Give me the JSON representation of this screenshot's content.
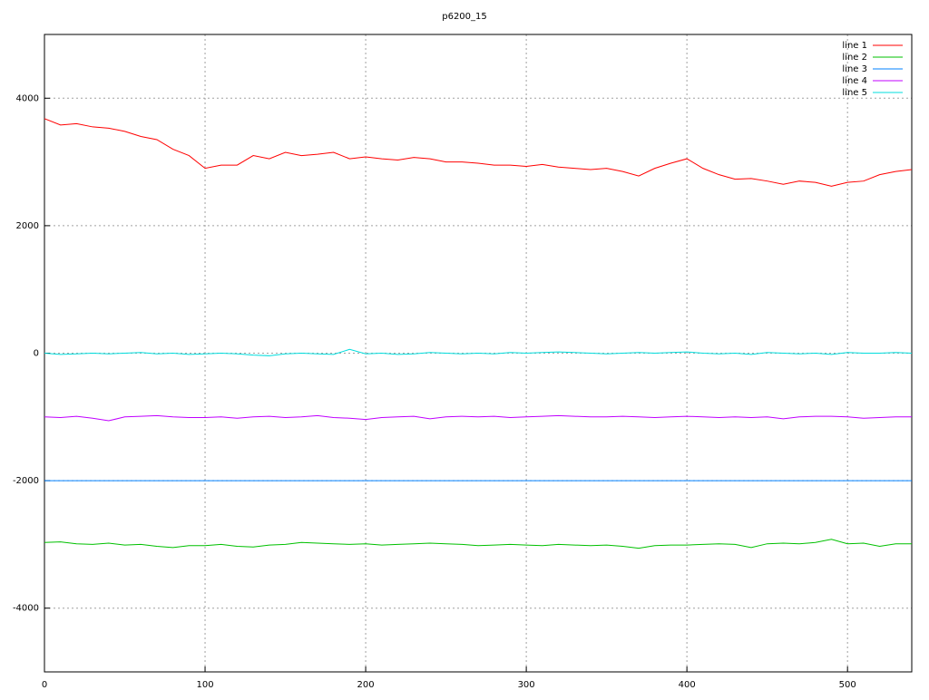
{
  "chart_data": {
    "type": "line",
    "title": "p6200_15",
    "x": [
      0,
      10,
      20,
      30,
      40,
      50,
      60,
      70,
      80,
      90,
      100,
      110,
      120,
      130,
      140,
      150,
      160,
      170,
      180,
      190,
      200,
      210,
      220,
      230,
      240,
      250,
      260,
      270,
      280,
      290,
      300,
      310,
      320,
      330,
      340,
      350,
      360,
      370,
      380,
      390,
      400,
      410,
      420,
      430,
      440,
      450,
      460,
      470,
      480,
      490,
      500,
      510,
      520,
      530,
      540
    ],
    "series": [
      {
        "name": "line 1",
        "color": "#ff0000",
        "values": [
          3680,
          3580,
          3600,
          3550,
          3530,
          3480,
          3400,
          3350,
          3200,
          3100,
          2900,
          2950,
          2950,
          3100,
          3050,
          3150,
          3100,
          3120,
          3150,
          3050,
          3080,
          3050,
          3030,
          3070,
          3050,
          3000,
          3000,
          2980,
          2950,
          2950,
          2930,
          2960,
          2920,
          2900,
          2880,
          2900,
          2850,
          2780,
          2900,
          2980,
          3050,
          2900,
          2800,
          2730,
          2740,
          2700,
          2650,
          2700,
          2680,
          2620,
          2680,
          2700,
          2800,
          2850,
          2880
        ]
      },
      {
        "name": "line 2",
        "color": "#00c000",
        "values": [
          -2970,
          -2960,
          -2990,
          -3000,
          -2980,
          -3010,
          -3000,
          -3030,
          -3050,
          -3020,
          -3020,
          -3000,
          -3030,
          -3040,
          -3010,
          -3000,
          -2970,
          -2980,
          -2990,
          -3000,
          -2990,
          -3010,
          -3000,
          -2990,
          -2980,
          -2990,
          -3000,
          -3020,
          -3010,
          -3000,
          -3010,
          -3020,
          -3000,
          -3010,
          -3020,
          -3010,
          -3030,
          -3060,
          -3020,
          -3010,
          -3010,
          -3000,
          -2990,
          -3000,
          -3050,
          -2990,
          -2980,
          -2990,
          -2970,
          -2920,
          -2990,
          -2980,
          -3030,
          -2990,
          -2990
        ]
      },
      {
        "name": "line 3",
        "color": "#0080ff",
        "values": [
          -2000,
          -2000,
          -2000,
          -2000,
          -2000,
          -2000,
          -2000,
          -2000,
          -2000,
          -2000,
          -2000,
          -2000,
          -2000,
          -2000,
          -2000,
          -2000,
          -2000,
          -2000,
          -2000,
          -2000,
          -2000,
          -2000,
          -2000,
          -2000,
          -2000,
          -2000,
          -2000,
          -2000,
          -2000,
          -2000,
          -2000,
          -2000,
          -2000,
          -2000,
          -2000,
          -2000,
          -2000,
          -2000,
          -2000,
          -2000,
          -2000,
          -2000,
          -2000,
          -2000,
          -2000,
          -2000,
          -2000,
          -2000,
          -2000,
          -2000,
          -2000,
          -2000,
          -2000,
          -2000,
          -2000
        ]
      },
      {
        "name": "line 4",
        "color": "#c000ff",
        "values": [
          -1000,
          -1010,
          -990,
          -1020,
          -1060,
          -1000,
          -990,
          -980,
          -1000,
          -1010,
          -1010,
          -1000,
          -1020,
          -1000,
          -990,
          -1010,
          -1000,
          -980,
          -1010,
          -1020,
          -1040,
          -1010,
          -1000,
          -990,
          -1030,
          -1000,
          -990,
          -1000,
          -990,
          -1010,
          -1000,
          -990,
          -980,
          -990,
          -1000,
          -1000,
          -990,
          -1000,
          -1010,
          -1000,
          -990,
          -1000,
          -1010,
          -1000,
          -1010,
          -1000,
          -1030,
          -1000,
          -990,
          -990,
          -1000,
          -1020,
          -1010,
          -1000,
          -1000
        ]
      },
      {
        "name": "line 5",
        "color": "#00dddd",
        "values": [
          0,
          -20,
          -10,
          0,
          -10,
          0,
          10,
          -10,
          0,
          -20,
          -10,
          0,
          -10,
          -30,
          -40,
          -10,
          0,
          -10,
          -20,
          60,
          -10,
          0,
          -20,
          -10,
          10,
          0,
          -10,
          0,
          -10,
          10,
          0,
          10,
          20,
          10,
          0,
          -10,
          0,
          10,
          0,
          10,
          20,
          0,
          -10,
          0,
          -20,
          10,
          0,
          -10,
          0,
          -20,
          10,
          0,
          0,
          10,
          0
        ]
      }
    ],
    "xlim": [
      0,
      540
    ],
    "xticks": [
      0,
      100,
      200,
      300,
      400,
      500
    ],
    "ylim": [
      -5000,
      5000
    ],
    "yticks": [
      -4000,
      -2000,
      0,
      2000,
      4000
    ],
    "grid": true,
    "legend": "top-right"
  }
}
